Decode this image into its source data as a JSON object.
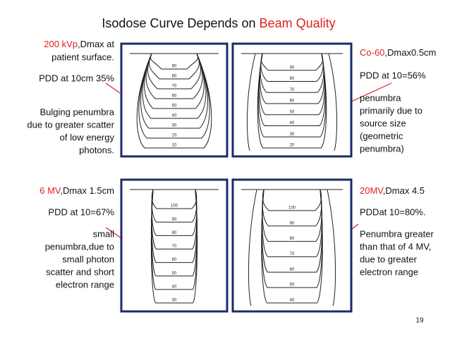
{
  "title": {
    "text": "Isodose Curve Depends on ",
    "highlight": "Beam Quality"
  },
  "panels": [
    {
      "heading": {
        "highlight": "200 kVp",
        "text": ",Dmax at"
      },
      "lines": [
        "patient surface.",
        "PDD at 10cm 35%",
        "Bulging penumbra",
        "due to greater scatter",
        "of low energy",
        "photons."
      ],
      "curve_labels": [
        90,
        80,
        70,
        60,
        50,
        40,
        30,
        20,
        10
      ]
    },
    {
      "heading": {
        "highlight": "Co-60",
        "text": ",Dmax0.5cm"
      },
      "lines": [
        "PDD at 10=56%",
        "penumbra",
        "primarily due to",
        "source size",
        "(geometric",
        "penumbra)"
      ],
      "curve_labels": [
        90,
        80,
        70,
        60,
        50,
        40,
        30,
        20
      ]
    },
    {
      "heading": {
        "highlight": "6 MV",
        "text": ",Dmax 1.5cm"
      },
      "lines": [
        "PDD at 10=67%",
        "small",
        "penumbra,due to",
        "small photon",
        "scatter and short",
        "electron range"
      ],
      "curve_labels": [
        100,
        90,
        80,
        70,
        60,
        50,
        40,
        30
      ]
    },
    {
      "heading": {
        "highlight": "20MV",
        "text": ",Dmax 4.5"
      },
      "lines": [
        "PDDat 10=80%.",
        "Penumbra greater",
        "than that of 4 MV,",
        "due to greater",
        "electron range"
      ],
      "curve_labels": [
        100,
        90,
        80,
        70,
        60,
        50,
        40
      ]
    }
  ],
  "page_number": "19"
}
